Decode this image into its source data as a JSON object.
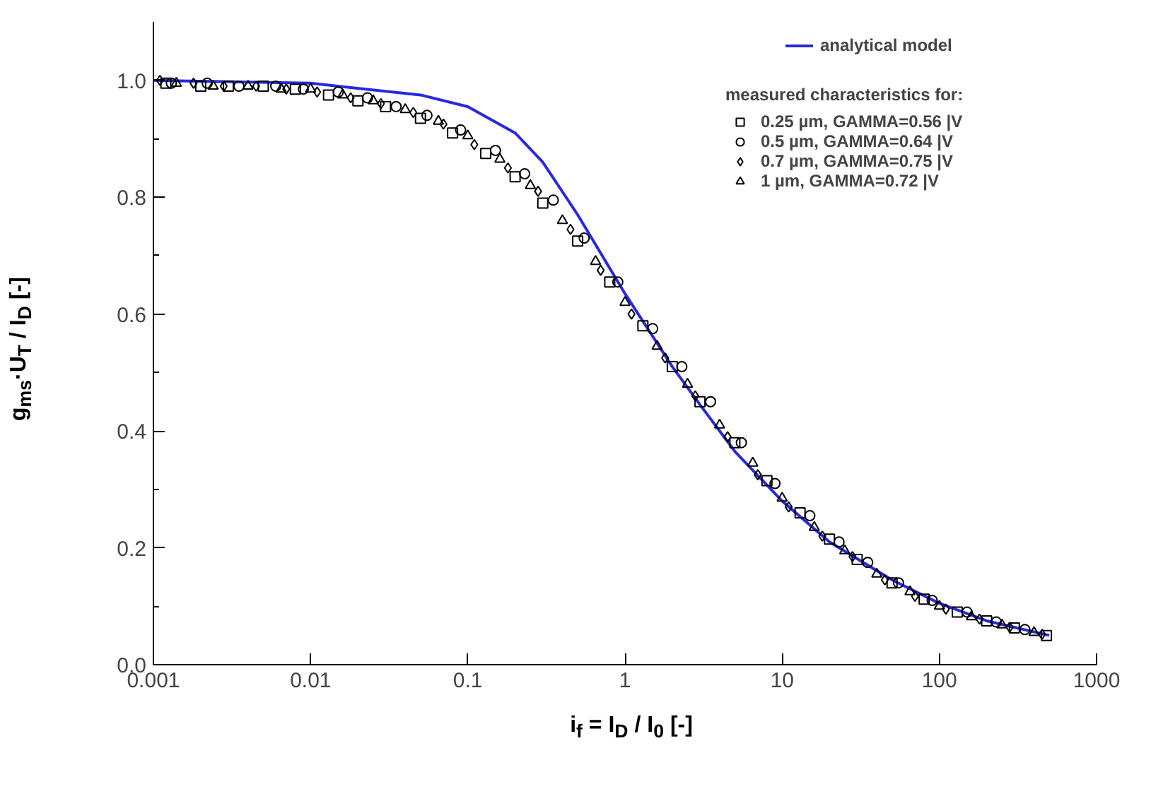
{
  "chart_data": {
    "type": "scatter",
    "xlabel": "i$_{f}$ = I$_{D}$ / I$_{0}$ [-]",
    "ylabel": "g$_{ms}$·U$_{T}$ / I$_{D}$ [-]",
    "legend_title": "measured characteristics for:",
    "log": "x",
    "xlim": [
      0.001,
      1000
    ],
    "ylim": [
      0,
      1.1
    ],
    "xticks": [
      0.001,
      0.01,
      0.1,
      1,
      10,
      100,
      1000
    ],
    "yticks": [
      {
        "value": 0,
        "label": "0.0"
      },
      0.2,
      0.4,
      0.6,
      0.8,
      {
        "value": 1,
        "label": "1.0"
      }
    ],
    "grid": false,
    "legend": "top right",
    "series": [
      {
        "name": "analytical model",
        "type": "line",
        "color": "#2828e0",
        "line_style": "solid",
        "marker": "none",
        "x": [
          0.001,
          0.01,
          0.05,
          0.1,
          0.2,
          0.3,
          0.5,
          1,
          2,
          3,
          5,
          10,
          20,
          50,
          100,
          200,
          500
        ],
        "values": [
          1.0,
          0.995,
          0.975,
          0.955,
          0.91,
          0.86,
          0.77,
          0.635,
          0.51,
          0.445,
          0.365,
          0.28,
          0.21,
          0.145,
          0.105,
          0.075,
          0.05
        ]
      },
      {
        "name": "0.25 µm, GAMMA=0.56 |V",
        "color": "#000000",
        "marker": "square",
        "x": [
          0.0012,
          0.002,
          0.003,
          0.005,
          0.008,
          0.013,
          0.02,
          0.03,
          0.05,
          0.08,
          0.13,
          0.2,
          0.3,
          0.5,
          0.8,
          1.3,
          2,
          3,
          5,
          8,
          13,
          20,
          30,
          50,
          80,
          130,
          200,
          300,
          480
        ],
        "values": [
          0.995,
          0.99,
          0.99,
          0.99,
          0.985,
          0.975,
          0.965,
          0.955,
          0.935,
          0.91,
          0.875,
          0.835,
          0.79,
          0.725,
          0.655,
          0.58,
          0.51,
          0.45,
          0.38,
          0.315,
          0.26,
          0.215,
          0.18,
          0.14,
          0.112,
          0.09,
          0.075,
          0.063,
          0.05
        ]
      },
      {
        "name": "0.5 µm, GAMMA=0.64 |V",
        "color": "#000000",
        "marker": "circle",
        "x": [
          0.0013,
          0.0022,
          0.0035,
          0.006,
          0.009,
          0.015,
          0.023,
          0.035,
          0.055,
          0.09,
          0.15,
          0.23,
          0.35,
          0.55,
          0.9,
          1.5,
          2.3,
          3.5,
          5.5,
          9,
          15,
          23,
          35,
          55,
          90,
          150,
          230,
          350
        ],
        "values": [
          0.995,
          0.995,
          0.99,
          0.99,
          0.985,
          0.98,
          0.97,
          0.955,
          0.94,
          0.915,
          0.88,
          0.84,
          0.795,
          0.73,
          0.655,
          0.575,
          0.51,
          0.45,
          0.38,
          0.31,
          0.255,
          0.21,
          0.175,
          0.14,
          0.11,
          0.09,
          0.073,
          0.06
        ]
      },
      {
        "name": "0.7 µm, GAMMA=0.75 |V",
        "color": "#000000",
        "marker": "diamond",
        "x": [
          0.0011,
          0.0018,
          0.0028,
          0.0045,
          0.007,
          0.011,
          0.018,
          0.028,
          0.045,
          0.07,
          0.11,
          0.18,
          0.28,
          0.45,
          0.7,
          1.1,
          1.8,
          2.8,
          4.5,
          7,
          11,
          18,
          28,
          45,
          70,
          110,
          180,
          280,
          450
        ],
        "values": [
          1.0,
          0.995,
          0.99,
          0.99,
          0.985,
          0.98,
          0.97,
          0.96,
          0.945,
          0.925,
          0.89,
          0.85,
          0.81,
          0.745,
          0.675,
          0.6,
          0.525,
          0.46,
          0.39,
          0.325,
          0.27,
          0.22,
          0.185,
          0.145,
          0.117,
          0.095,
          0.078,
          0.064,
          0.052
        ]
      },
      {
        "name": "1 µm, GAMMA=0.72 |V",
        "color": "#000000",
        "marker": "triangle",
        "x": [
          0.0014,
          0.0024,
          0.004,
          0.0065,
          0.01,
          0.016,
          0.025,
          0.04,
          0.065,
          0.1,
          0.16,
          0.25,
          0.4,
          0.65,
          1,
          1.6,
          2.5,
          4,
          6.5,
          10,
          16,
          25,
          40,
          65,
          100,
          160,
          250,
          400
        ],
        "values": [
          0.995,
          0.99,
          0.99,
          0.985,
          0.985,
          0.975,
          0.965,
          0.95,
          0.93,
          0.905,
          0.865,
          0.82,
          0.76,
          0.69,
          0.62,
          0.545,
          0.48,
          0.41,
          0.345,
          0.285,
          0.235,
          0.195,
          0.155,
          0.125,
          0.1,
          0.082,
          0.068,
          0.055
        ]
      }
    ]
  }
}
